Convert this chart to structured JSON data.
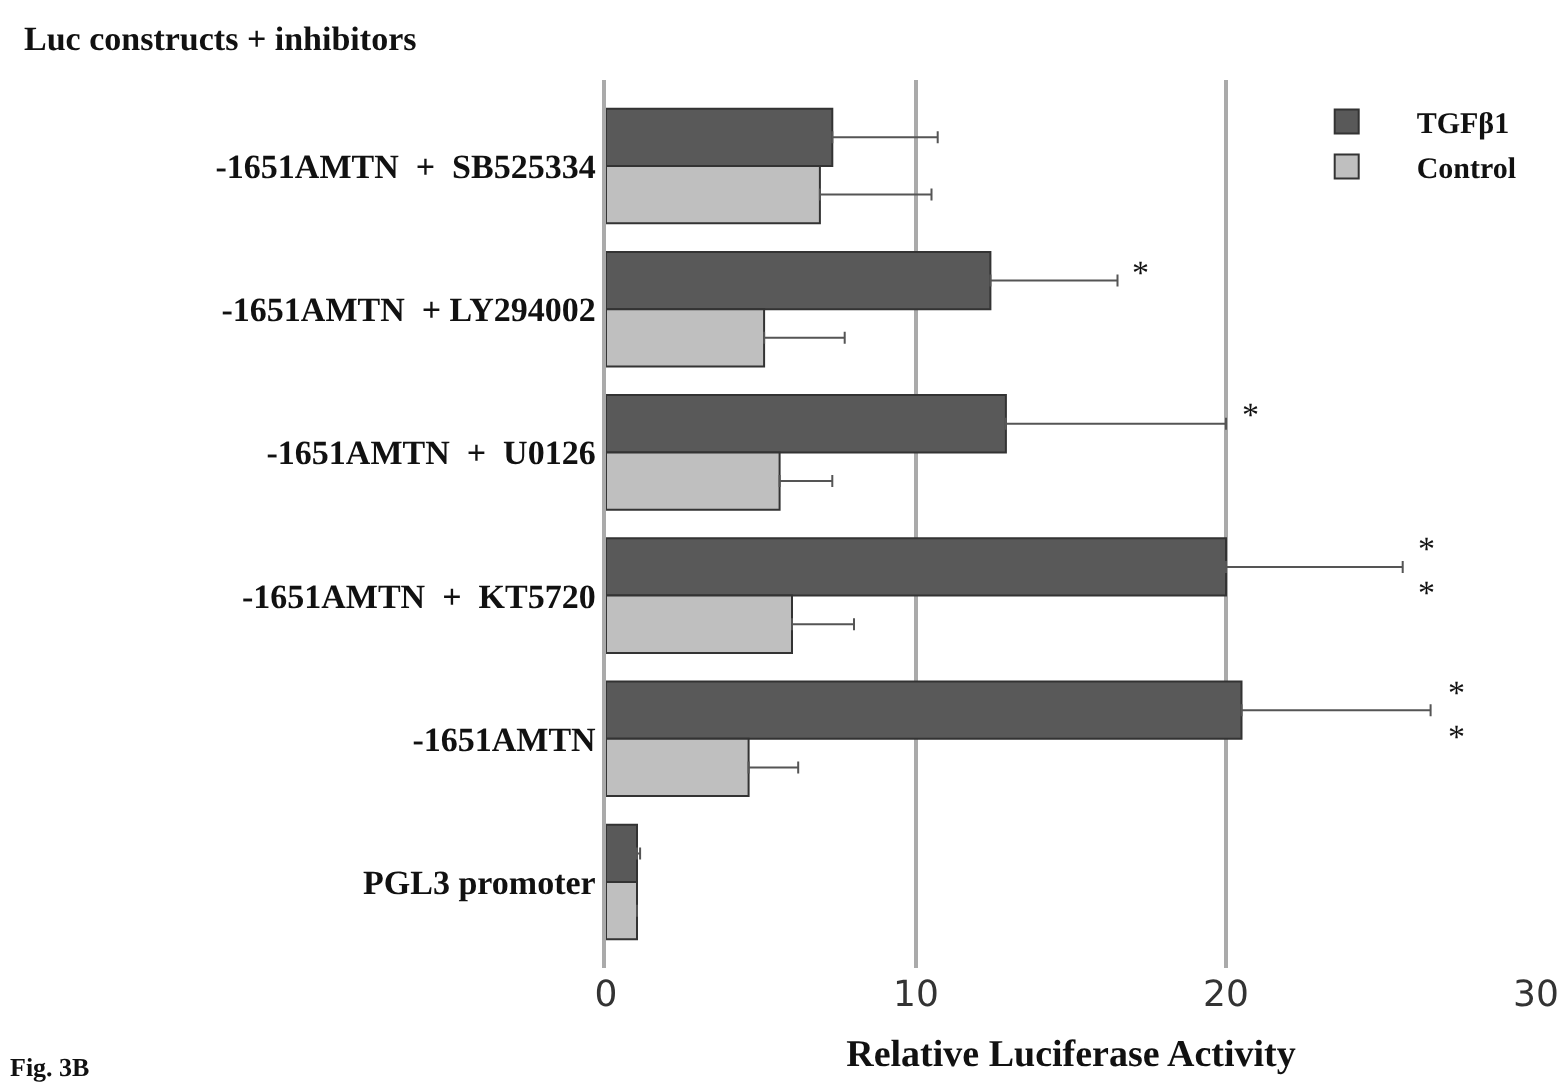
{
  "chart_data": {
    "type": "bar",
    "orientation": "horizontal",
    "ylabel": "Luc constructs + inhibitors",
    "xlabel": "Relative Luciferase Activity",
    "categories": [
      "-1651AMTN  +  SB525334",
      "-1651AMTN  + LY294002",
      "-1651AMTN  +  U0126",
      "-1651AMTN  +  KT5720",
      "-1651AMTN",
      "PGL3 promoter"
    ],
    "series": [
      {
        "name": "TGFβ1",
        "color": "#595959",
        "values": [
          7.3,
          12.4,
          12.9,
          20.0,
          20.5,
          1.0
        ],
        "errors": [
          [
            7.3,
            10.7
          ],
          [
            12.4,
            16.5
          ],
          [
            12.9,
            20.0
          ],
          [
            20.0,
            25.7
          ],
          [
            20.5,
            26.6
          ],
          [
            1.0,
            1.1
          ]
        ]
      },
      {
        "name": "Control",
        "color": "#bfbfbf",
        "values": [
          6.9,
          5.1,
          5.6,
          6.0,
          4.6,
          1.0
        ],
        "errors": [
          [
            6.9,
            10.5
          ],
          [
            5.1,
            7.7
          ],
          [
            5.6,
            7.3
          ],
          [
            6.0,
            8.0
          ],
          [
            4.6,
            6.2
          ],
          [
            1.0,
            1.0
          ]
        ]
      }
    ],
    "xlim": [
      0,
      30
    ],
    "xticks": [
      0,
      10,
      20,
      30
    ],
    "grid": "x",
    "legend": "top right",
    "annotations": [
      "*",
      "*",
      "*\n*",
      "*\n*",
      "Fig. 3B"
    ]
  }
}
